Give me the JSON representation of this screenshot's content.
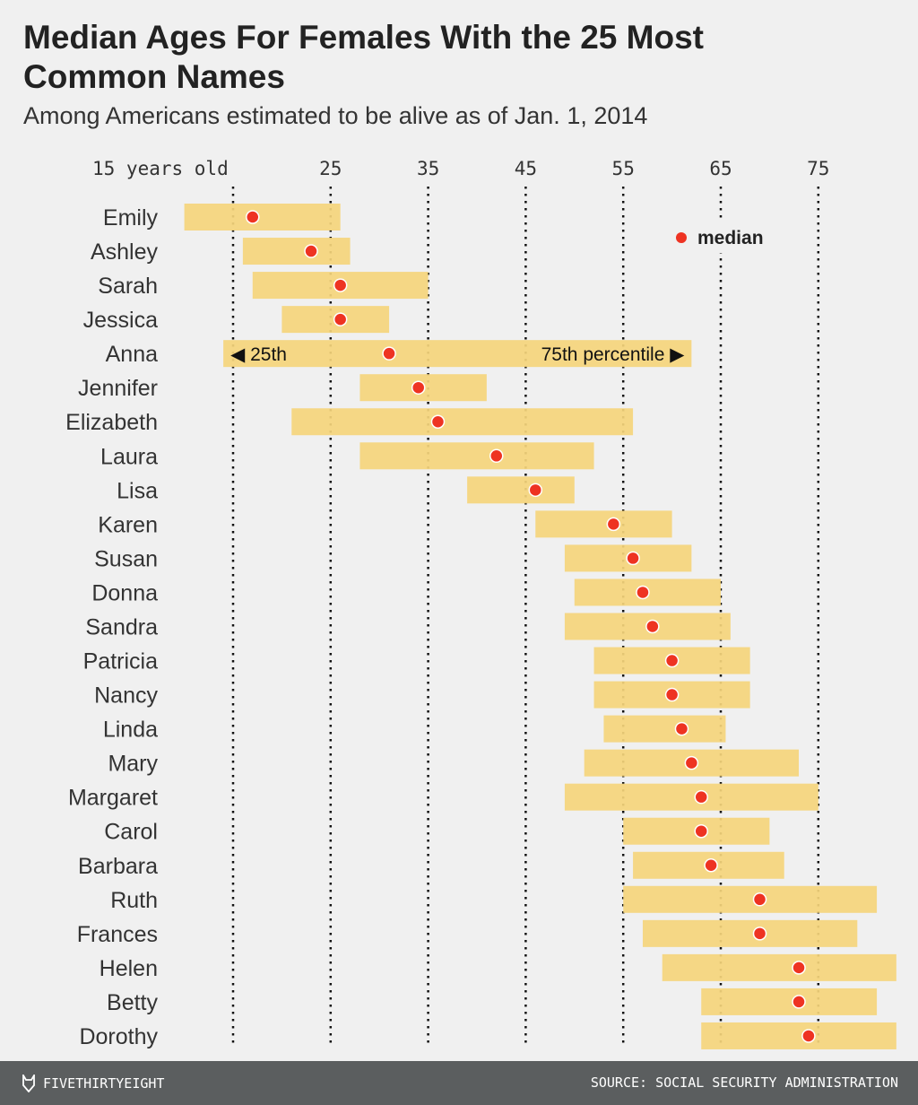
{
  "chart_data": {
    "type": "range-dot",
    "title": "Median Ages For Females With the 25 Most Common Names",
    "subtitle": "Among Americans estimated to be alive as of Jan. 1, 2014",
    "x_ticks": [
      15,
      25,
      35,
      45,
      55,
      65,
      75
    ],
    "x_tick_labels": [
      "15 years old",
      "25",
      "35",
      "45",
      "55",
      "65",
      "75"
    ],
    "xlim": [
      10,
      83
    ],
    "grid": "vertical dotted",
    "legend": {
      "label": "median",
      "placement": "top-right"
    },
    "annotation": {
      "left": "◀ 25th",
      "right": "75th percentile ▶"
    },
    "series_colors": {
      "range": "#f5d57c",
      "median": "#ee3322"
    },
    "rows": [
      {
        "name": "Emily",
        "p25": 10,
        "median": 17,
        "p75": 26
      },
      {
        "name": "Ashley",
        "p25": 16,
        "median": 23,
        "p75": 27
      },
      {
        "name": "Sarah",
        "p25": 17,
        "median": 26,
        "p75": 35
      },
      {
        "name": "Jessica",
        "p25": 20,
        "median": 26,
        "p75": 31
      },
      {
        "name": "Anna",
        "p25": 14,
        "median": 31,
        "p75": 62
      },
      {
        "name": "Jennifer",
        "p25": 28,
        "median": 34,
        "p75": 41
      },
      {
        "name": "Elizabeth",
        "p25": 21,
        "median": 36,
        "p75": 56
      },
      {
        "name": "Laura",
        "p25": 28,
        "median": 42,
        "p75": 52
      },
      {
        "name": "Lisa",
        "p25": 39,
        "median": 46,
        "p75": 50
      },
      {
        "name": "Karen",
        "p25": 46,
        "median": 54,
        "p75": 60
      },
      {
        "name": "Susan",
        "p25": 49,
        "median": 56,
        "p75": 62
      },
      {
        "name": "Donna",
        "p25": 50,
        "median": 57,
        "p75": 65
      },
      {
        "name": "Sandra",
        "p25": 49,
        "median": 58,
        "p75": 66
      },
      {
        "name": "Patricia",
        "p25": 52,
        "median": 60,
        "p75": 68
      },
      {
        "name": "Nancy",
        "p25": 52,
        "median": 60,
        "p75": 68
      },
      {
        "name": "Linda",
        "p25": 53,
        "median": 61,
        "p75": 65.5
      },
      {
        "name": "Mary",
        "p25": 51,
        "median": 62,
        "p75": 73
      },
      {
        "name": "Margaret",
        "p25": 49,
        "median": 63,
        "p75": 75
      },
      {
        "name": "Carol",
        "p25": 55,
        "median": 63,
        "p75": 70
      },
      {
        "name": "Barbara",
        "p25": 56,
        "median": 64,
        "p75": 71.5
      },
      {
        "name": "Ruth",
        "p25": 55,
        "median": 69,
        "p75": 81
      },
      {
        "name": "Frances",
        "p25": 57,
        "median": 69,
        "p75": 79
      },
      {
        "name": "Helen",
        "p25": 59,
        "median": 73,
        "p75": 83
      },
      {
        "name": "Betty",
        "p25": 63,
        "median": 73,
        "p75": 81
      },
      {
        "name": "Dorothy",
        "p25": 63,
        "median": 74,
        "p75": 83
      }
    ]
  },
  "footer": {
    "brand": "FIVETHIRTYEIGHT",
    "source": "SOURCE: SOCIAL SECURITY ADMINISTRATION"
  }
}
